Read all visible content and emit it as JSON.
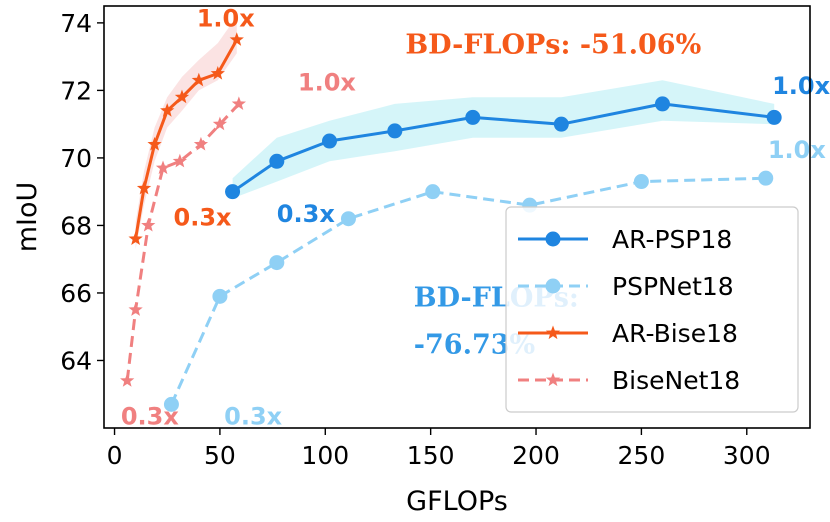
{
  "chart_data": {
    "type": "line",
    "xlabel": "GFLOPs",
    "ylabel": "mIoU",
    "xlim": [
      -5,
      330
    ],
    "ylim": [
      62.0,
      74.5
    ],
    "xticks": [
      0,
      50,
      100,
      150,
      200,
      250,
      300
    ],
    "xtick_labels": [
      "0",
      "50",
      "100",
      "150",
      "200",
      "250",
      "300"
    ],
    "yticks": [
      64,
      66,
      68,
      70,
      72,
      74
    ],
    "ytick_labels": [
      "64",
      "66",
      "68",
      "70",
      "72",
      "74"
    ],
    "grid": false,
    "legend_position": "lower-right",
    "series": [
      {
        "name": "AR-PSP18",
        "color": "#1f85e0",
        "linestyle": "solid",
        "marker": "circle",
        "x": [
          56,
          77,
          102,
          133,
          170,
          212,
          260,
          313
        ],
        "y": [
          69.0,
          69.9,
          70.5,
          70.8,
          71.2,
          71.0,
          71.6,
          71.2
        ],
        "band": {
          "color": "#c7f1f7",
          "upper": [
            69.4,
            70.6,
            71.1,
            71.6,
            71.8,
            71.8,
            72.3,
            71.6
          ],
          "lower": [
            68.8,
            69.3,
            69.9,
            70.2,
            70.6,
            70.6,
            71.1,
            71.0
          ]
        }
      },
      {
        "name": "PSPNet18",
        "color": "#8fd0f5",
        "linestyle": "dashed",
        "marker": "circle",
        "x": [
          27,
          50,
          77,
          111,
          151,
          197,
          250,
          309
        ],
        "y": [
          62.7,
          65.9,
          66.9,
          68.2,
          69.0,
          68.6,
          69.3,
          69.4
        ]
      },
      {
        "name": "AR-Bise18",
        "color": "#f5591a",
        "linestyle": "solid",
        "marker": "star",
        "x": [
          10,
          14,
          19,
          25,
          32,
          40,
          49,
          58
        ],
        "y": [
          67.6,
          69.1,
          70.4,
          71.4,
          71.8,
          72.3,
          72.5,
          73.5
        ],
        "band": {
          "color": "#f9d9d9",
          "upper": [
            68.1,
            69.6,
            70.9,
            71.8,
            72.4,
            72.9,
            73.4,
            74.2
          ],
          "lower": [
            67.3,
            68.6,
            69.9,
            70.9,
            71.4,
            72.0,
            72.3,
            73.1
          ]
        }
      },
      {
        "name": "BiseNet18",
        "color": "#f08080",
        "linestyle": "dashed",
        "marker": "star",
        "x": [
          6,
          10,
          16,
          23,
          31,
          41,
          50,
          59
        ],
        "y": [
          63.4,
          65.5,
          68.0,
          69.7,
          69.9,
          70.4,
          71.0,
          71.6
        ]
      }
    ],
    "annotations": [
      {
        "text": "1.0x",
        "x": 39,
        "y": 73.9,
        "color": "#f5591a",
        "style": "mult"
      },
      {
        "text": "0.3x",
        "x": 28,
        "y": 68.0,
        "color": "#f5591a",
        "style": "mult"
      },
      {
        "text": "1.0x",
        "x": 87,
        "y": 72.0,
        "color": "#f08080",
        "style": "mult"
      },
      {
        "text": "0.3x",
        "x": 3,
        "y": 62.1,
        "color": "#f08080",
        "style": "mult"
      },
      {
        "text": "0.3x",
        "x": 52,
        "y": 62.1,
        "color": "#8fd0f5",
        "style": "mult"
      },
      {
        "text": "1.0x",
        "x": 310,
        "y": 70.0,
        "color": "#8fd0f5",
        "style": "mult"
      },
      {
        "text": "0.3x",
        "x": 77,
        "y": 68.1,
        "color": "#1f85e0",
        "style": "mult"
      },
      {
        "text": "1.0x",
        "x": 312,
        "y": 71.9,
        "color": "#1f85e0",
        "style": "mult"
      },
      {
        "text": "BD-FLOPs: -51.06%",
        "x": 138,
        "y": 73.1,
        "color": "#f5591a",
        "style": "bd"
      },
      {
        "text": "BD-FLOPs:",
        "x": 142,
        "y": 65.6,
        "color": "#3399e6",
        "style": "bd"
      },
      {
        "text": "-76.73%",
        "x": 142,
        "y": 64.2,
        "color": "#3399e6",
        "style": "bd"
      }
    ]
  }
}
